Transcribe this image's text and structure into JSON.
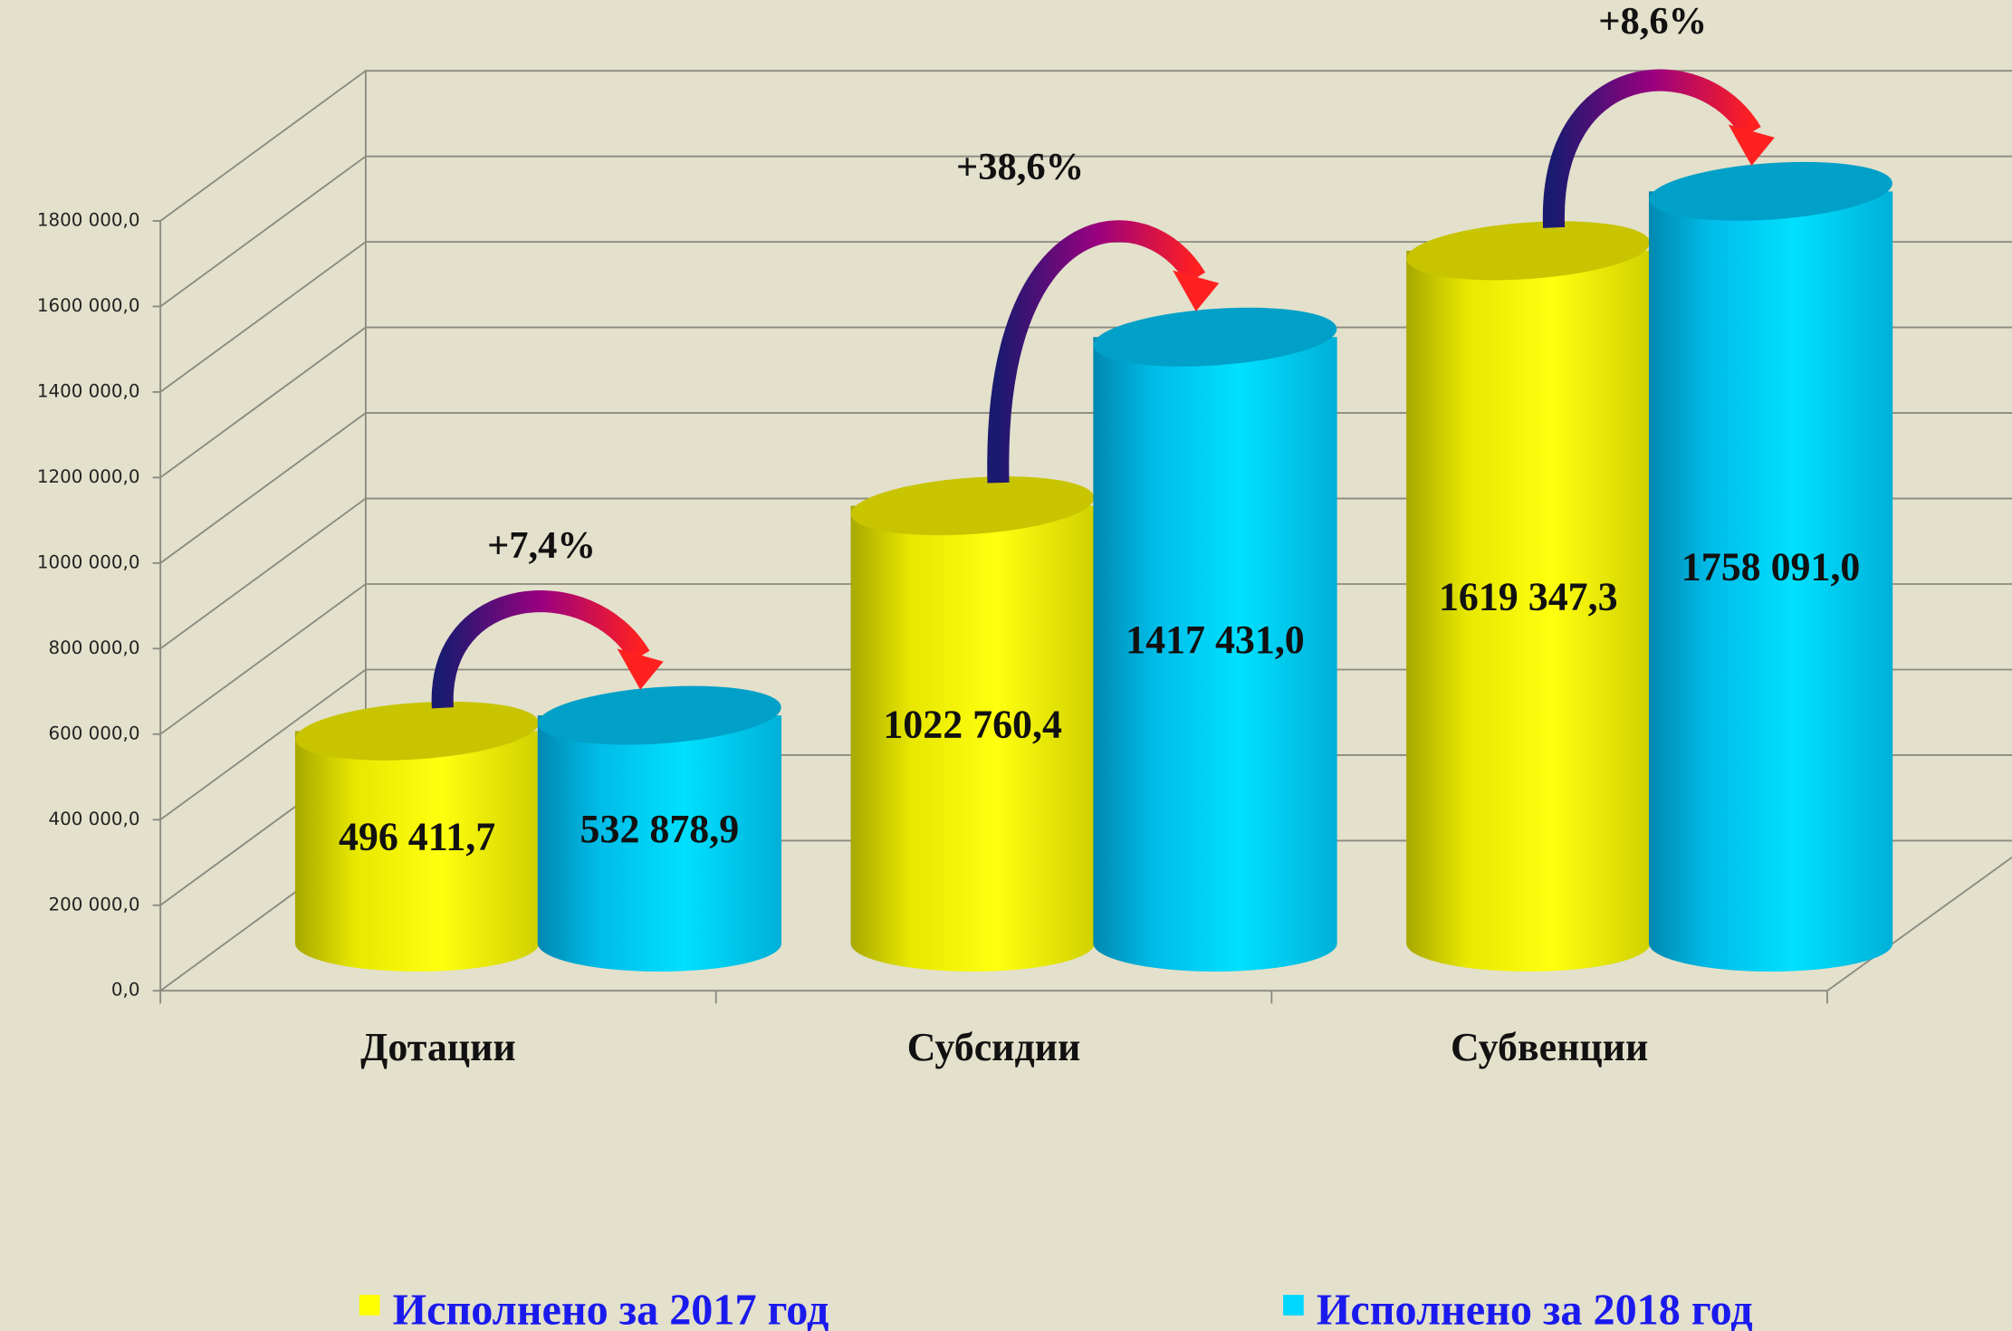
{
  "chart_data": {
    "type": "bar3d",
    "categories": [
      "Дотации",
      "Субсидии",
      "Субвенции"
    ],
    "series": [
      {
        "name": "Исполнено за 2017 год",
        "color": "#ffff00",
        "values": [
          496411.7,
          1022760.4,
          1619347.3
        ],
        "value_labels": [
          "496 411,7",
          "1022 760,4",
          "1619 347,3"
        ]
      },
      {
        "name": "Исполнено за 2018 год",
        "color": "#00d8ff",
        "values": [
          532878.9,
          1417431.0,
          1758091.0
        ],
        "value_labels": [
          "532 878,9",
          "1417 431,0",
          "1758 091,0"
        ]
      }
    ],
    "annotations": [
      "+7,4%",
      "+38,6%",
      "+8,6%"
    ],
    "ylim": [
      0,
      1800000
    ],
    "yticks": [
      {
        "value": 0,
        "label": "0,0"
      },
      {
        "value": 200000,
        "label": "200 000,0"
      },
      {
        "value": 400000,
        "label": "400 000,0"
      },
      {
        "value": 600000,
        "label": "600 000,0"
      },
      {
        "value": 800000,
        "label": "800 000,0"
      },
      {
        "value": 1000000,
        "label": "1000 000,0"
      },
      {
        "value": 1200000,
        "label": "1200 000,0"
      },
      {
        "value": 1400000,
        "label": "1400 000,0"
      },
      {
        "value": 1600000,
        "label": "1600 000,0"
      },
      {
        "value": 1800000,
        "label": "1800 000,0"
      }
    ],
    "grid": true,
    "legend": "bottom"
  }
}
